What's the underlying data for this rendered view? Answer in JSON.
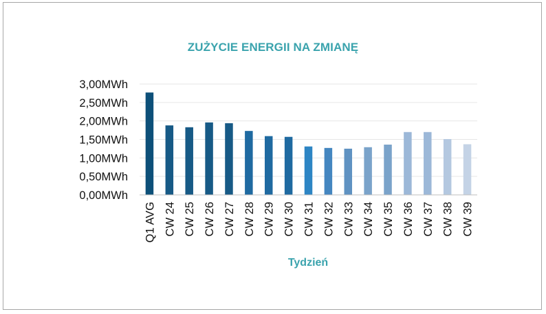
{
  "chart_data": {
    "type": "bar",
    "title": "ZUŻYCIE ENERGII NA ZMIANĘ",
    "xlabel": "Tydzień",
    "ylabel": "",
    "ylim": [
      0,
      3.0
    ],
    "yticks": [
      "0,00MWh",
      "0,50MWh",
      "1,00MWh",
      "1,50MWh",
      "2,00MWh",
      "2,50MWh",
      "3,00MWh"
    ],
    "ytick_values": [
      0,
      0.5,
      1.0,
      1.5,
      2.0,
      2.5,
      3.0
    ],
    "grid": true,
    "legend": "none",
    "categories": [
      "Q1 AVG",
      "CW 24",
      "CW 25",
      "CW 26",
      "CW 27",
      "CW 28",
      "CW 29",
      "CW 30",
      "CW 31",
      "CW 32",
      "CW 33",
      "CW 34",
      "CW 35",
      "CW 36",
      "CW 37",
      "CW 38",
      "CW 39"
    ],
    "values": [
      2.77,
      1.88,
      1.83,
      1.96,
      1.94,
      1.73,
      1.59,
      1.57,
      1.31,
      1.27,
      1.25,
      1.29,
      1.36,
      1.7,
      1.7,
      1.51,
      1.37
    ],
    "colors": [
      "#0d5079",
      "#175a86",
      "#175a86",
      "#175a86",
      "#175a86",
      "#1f6aa1",
      "#1f6aa1",
      "#1f6aa1",
      "#2d85c4",
      "#4486c0",
      "#5f92c2",
      "#7aa3ca",
      "#7aa3ca",
      "#9cb8d8",
      "#9cb8d8",
      "#b4c8e0",
      "#c4d3e6"
    ]
  }
}
